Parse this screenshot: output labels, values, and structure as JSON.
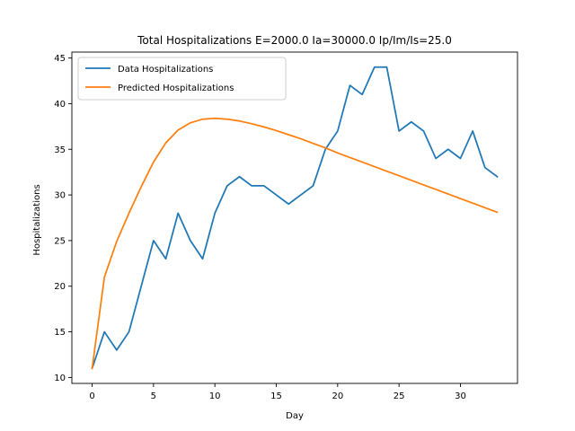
{
  "chart_data": {
    "type": "line",
    "title": "Total Hospitalizations E=2000.0 Ia=30000.0 Ip/Im/Is=25.0",
    "xlabel": "Day",
    "ylabel": "Hospitalizations",
    "xlim": [
      -1.65,
      34.65
    ],
    "ylim": [
      9.35,
      45.65
    ],
    "xticks": [
      0,
      5,
      10,
      15,
      20,
      25,
      30
    ],
    "yticks": [
      10,
      15,
      20,
      25,
      30,
      35,
      40,
      45
    ],
    "grid": false,
    "legend_position": "top-left",
    "x": [
      0,
      1,
      2,
      3,
      4,
      5,
      6,
      7,
      8,
      9,
      10,
      11,
      12,
      13,
      14,
      15,
      16,
      17,
      18,
      19,
      20,
      21,
      22,
      23,
      24,
      25,
      26,
      27,
      28,
      29,
      30,
      31,
      32,
      33
    ],
    "series": [
      {
        "name": "Data Hospitalizations",
        "color": "#1f77b4",
        "values": [
          11,
          15,
          13,
          15,
          20,
          25,
          23,
          28,
          25,
          23,
          28,
          31,
          32,
          31,
          31,
          30,
          29,
          30,
          31,
          35,
          37,
          42,
          41,
          44,
          44,
          37,
          38,
          37,
          34,
          35,
          34,
          37,
          33,
          32
        ]
      },
      {
        "name": "Predicted Hospitalizations",
        "color": "#ff7f0e",
        "values": [
          11,
          21,
          24.9,
          28.0,
          30.9,
          33.6,
          35.7,
          37.1,
          37.9,
          38.3,
          38.4,
          38.3,
          38.1,
          37.8,
          37.45,
          37.05,
          36.6,
          36.15,
          35.65,
          35.15,
          34.6,
          34.1,
          33.6,
          33.1,
          32.6,
          32.1,
          31.6,
          31.1,
          30.6,
          30.1,
          29.6,
          29.1,
          28.6,
          28.1
        ]
      }
    ]
  }
}
